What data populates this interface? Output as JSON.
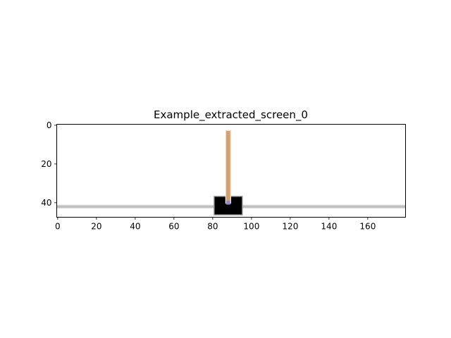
{
  "chart_data": {
    "type": "image",
    "title": "Example_extracted_screen_0",
    "xlabel": "",
    "ylabel": "",
    "image_width": 180,
    "image_height": 48,
    "xlim": [
      -0.5,
      179.5
    ],
    "ylim": [
      47.5,
      -0.5
    ],
    "y_inverted": true,
    "grid": false,
    "xticks": [
      0,
      20,
      40,
      60,
      80,
      100,
      120,
      140,
      160
    ],
    "yticks": [
      0,
      20,
      40
    ],
    "scene": {
      "track": {
        "y": 42,
        "color": "#bdbdbd"
      },
      "cart": {
        "x_min": 81,
        "x_max": 95,
        "y_min": 37,
        "y_max": 46,
        "color": "#000000"
      },
      "pole": {
        "x_min": 87,
        "x_max": 89,
        "y_min": 3,
        "y_max": 40,
        "color": "#d1a06e"
      },
      "axle": {
        "x": 88,
        "y": 40,
        "color": "#8a8ad0"
      }
    }
  }
}
